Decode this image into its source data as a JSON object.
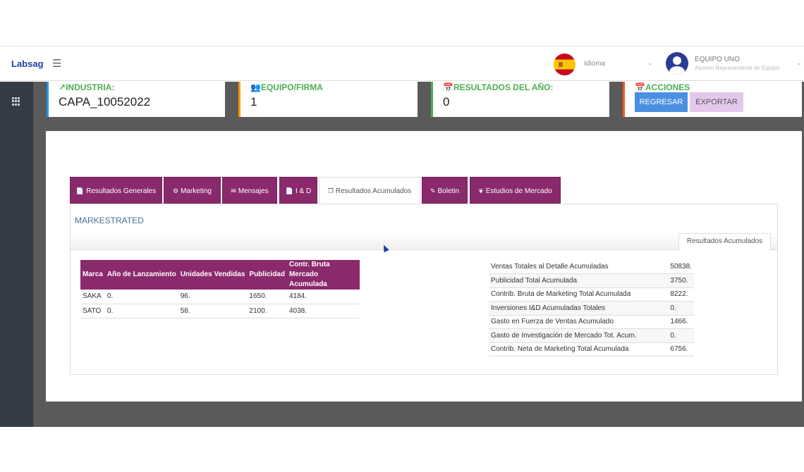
{
  "brand": "Labsag",
  "navbar": {
    "idioma_label": "Idioma",
    "user_name": "EQUIPO UNO",
    "user_role": "Alumno Representante de Equipo"
  },
  "cards": {
    "industria": {
      "title": "INDUSTRIA:",
      "value": "CAPA_10052022",
      "icon": "trend-up-icon",
      "color": "#2196f3"
    },
    "equipo": {
      "title": "EQUIPO/FIRMA",
      "value": "1",
      "icon": "users-icon",
      "color": "#ff9800"
    },
    "resultados": {
      "title": "RESULTADOS DEL AÑO:",
      "value": "0",
      "icon": "calendar-icon",
      "color": "#4caf50"
    },
    "acciones": {
      "title": "ACCIONES",
      "icon": "calendar-icon",
      "color": "#ff5722",
      "regresar": "REGRESAR",
      "exportar": "EXPORTAR"
    }
  },
  "tabs": [
    {
      "label": "Resultados Generales",
      "icon": "file-icon"
    },
    {
      "label": "Marketing",
      "icon": "cogs-icon"
    },
    {
      "label": "Mensajes",
      "icon": "envelope-icon"
    },
    {
      "label": "I & D",
      "icon": "file-icon"
    },
    {
      "label": "Resultados Acumulados",
      "icon": "copy-icon",
      "active": true
    },
    {
      "label": "Boletin",
      "icon": "pen-icon"
    },
    {
      "label": "Estudios de Mercado",
      "icon": "leaf-icon"
    }
  ],
  "content": {
    "title": "MARKESTRATED",
    "subtab": "Resultados Acumulados",
    "brand_table": {
      "headers": [
        "Marca",
        "Año de Lanzamiento",
        "Unidades Vendidas",
        "Publicidad",
        "Contr. Bruta Mercado Acumulada"
      ],
      "rows": [
        [
          "SAKA",
          "0.",
          "96.",
          "1650.",
          "4184."
        ],
        [
          "SATO",
          "0.",
          "58.",
          "2100.",
          "4038."
        ]
      ]
    },
    "summary": [
      {
        "label": "Ventas Totales al Detalle Acumuladas",
        "value": "50838."
      },
      {
        "label": "Publicidad Total Acumulada",
        "value": "3750."
      },
      {
        "label": "Contrib. Bruta de Marketing Total Acumulada",
        "value": "8222."
      },
      {
        "label": "Inversiones I&D Acumuladas Totales",
        "value": "0."
      },
      {
        "label": "Gasto en Fuerza de Ventas Acumulado",
        "value": "1466."
      },
      {
        "label": "Gasto de Investigación de Mercado Tot. Acum.",
        "value": "0."
      },
      {
        "label": "Contrib. Neta de Marketing Total Acumulada",
        "value": "6756."
      }
    ]
  }
}
